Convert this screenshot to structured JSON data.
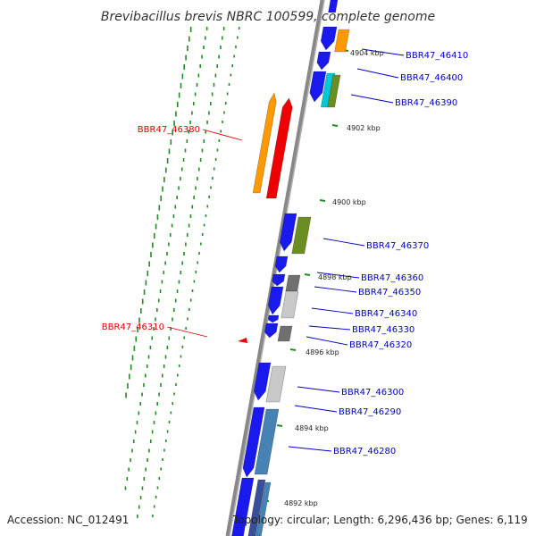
{
  "title": "Brevibacillus brevis NBRC 100599, complete genome",
  "footer": {
    "accession": "Accession: NC_012491",
    "topology": "Topology: circular; Length: 6,296,436 bp; Genes: 6,119"
  },
  "scale_labels": [
    "4904 kbp",
    "4902 kbp",
    "4900 kbp",
    "4898 kbp",
    "4896 kbp",
    "4894 kbp",
    "4892 kbp"
  ],
  "genes_forward": [
    "BBR47_46410",
    "BBR47_46400",
    "BBR47_46390",
    "BBR47_46370",
    "BBR47_46360",
    "BBR47_46350",
    "BBR47_46340",
    "BBR47_46330",
    "BBR47_46320",
    "BBR47_46300",
    "BBR47_46290",
    "BBR47_46280"
  ],
  "genes_reverse": [
    "BBR47_46380",
    "BBR47_46310"
  ],
  "colors": {
    "forward_label": "#0000cc",
    "reverse_label": "#dd0000",
    "cds_blue": "#1a1aee",
    "orange": "#ff9900",
    "red": "#ee0000",
    "olive": "#6b8e23",
    "gray_light": "#c8c8c8",
    "gray_dark": "#707070",
    "steel": "#4682b4",
    "cyan": "#00c8d8",
    "tick_green": "#228b22",
    "axis": "#888888"
  }
}
